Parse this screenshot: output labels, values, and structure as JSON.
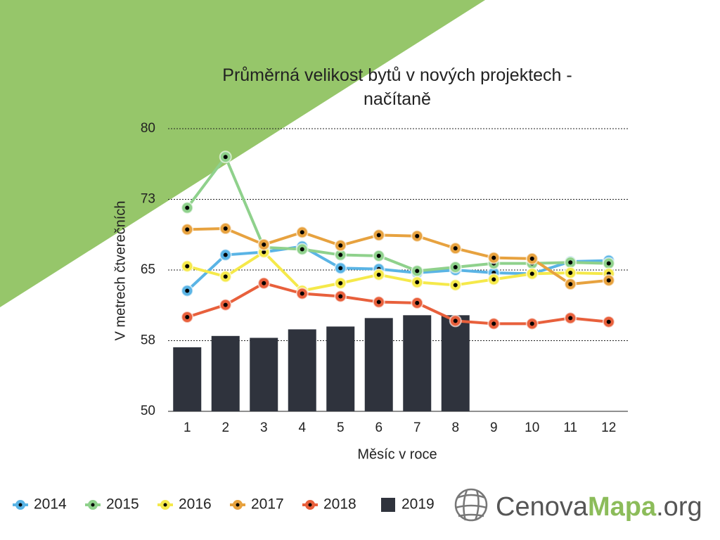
{
  "chart_data": {
    "type": "line",
    "title": "Průměrná velikost bytů v nových projektech - načítaně",
    "x_label": "Měsíc v roce",
    "y_label": "V metrech čtverečních",
    "categories": [
      "1",
      "2",
      "3",
      "4",
      "5",
      "6",
      "7",
      "8",
      "9",
      "10",
      "11",
      "12"
    ],
    "ylim": [
      50,
      80
    ],
    "yticks": [
      50,
      {
        "value": 57.5,
        "label": "58"
      },
      65,
      {
        "value": 72.5,
        "label": "73"
      },
      80
    ],
    "grid": true,
    "legend": "bottom",
    "series": [
      {
        "name": "2014",
        "color": "#5ab4e5",
        "values": [
          62.8,
          66.6,
          66.9,
          67.5,
          65.2,
          65.1,
          64.7,
          65.0,
          64.7,
          64.6,
          65.9,
          66.0
        ]
      },
      {
        "name": "2015",
        "color": "#8fd18c",
        "values": [
          71.6,
          77.0,
          67.4,
          67.2,
          66.6,
          66.5,
          64.9,
          65.3,
          65.7,
          65.7,
          65.8,
          65.7
        ]
      },
      {
        "name": "2016",
        "color": "#f5e94a",
        "values": [
          65.4,
          64.3,
          66.9,
          62.8,
          63.6,
          64.5,
          63.7,
          63.4,
          64.0,
          64.6,
          64.7,
          64.6
        ]
      },
      {
        "name": "2017",
        "color": "#e7a23f",
        "values": [
          69.3,
          69.4,
          67.7,
          69.0,
          67.6,
          68.7,
          68.6,
          67.3,
          66.3,
          66.2,
          63.5,
          63.9
        ]
      },
      {
        "name": "2018",
        "color": "#e8603c",
        "values": [
          60.0,
          61.3,
          63.6,
          62.5,
          62.2,
          61.6,
          61.5,
          59.6,
          59.3,
          59.3,
          59.9,
          59.5
        ]
      },
      {
        "name": "2019",
        "color": "#2f333d",
        "type": "bar",
        "values": [
          56.8,
          58.0,
          57.8,
          58.7,
          59.0,
          59.9,
          60.2,
          60.2,
          null,
          null,
          null,
          null
        ]
      }
    ]
  },
  "logo": {
    "parts": [
      "Cenova",
      "Mapa",
      ".org"
    ]
  }
}
